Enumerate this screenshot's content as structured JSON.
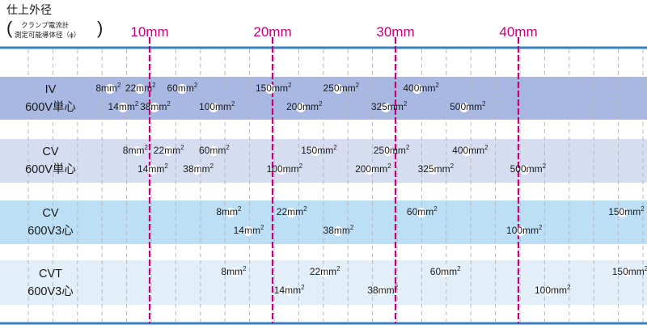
{
  "header": {
    "title": "仕上外径",
    "open_paren": "(",
    "close_paren": ")",
    "sub_line1": "クランプ電流計",
    "sub_line2": "測定可能導体径（ϕ）"
  },
  "chart_data": {
    "type": "table",
    "x_unit": "mm",
    "x_ticks": [
      {
        "value": 10,
        "label": "10mm"
      },
      {
        "value": 20,
        "label": "20mm"
      },
      {
        "value": 30,
        "label": "30mm"
      },
      {
        "value": 40,
        "label": "40mm"
      }
    ],
    "rows": [
      {
        "name_line1": "IV",
        "name_line2": "600V単心",
        "color": "#a8b8e2",
        "items": [
          {
            "label": "8mm",
            "sup": "2",
            "x": 6.8
          },
          {
            "label": "14mm",
            "sup": "2",
            "x": 7.8
          },
          {
            "label": "22mm",
            "sup": "2",
            "x": 9.2
          },
          {
            "label": "38mm",
            "sup": "2",
            "x": 10.4
          },
          {
            "label": "60mm",
            "sup": "2",
            "x": 12.6
          },
          {
            "label": "100mm",
            "sup": "2",
            "x": 15.2
          },
          {
            "label": "150mm",
            "sup": "2",
            "x": 19.8
          },
          {
            "label": "200mm",
            "sup": "2",
            "x": 22.3
          },
          {
            "label": "250mm",
            "sup": "2",
            "x": 25.3
          },
          {
            "label": "325mm",
            "sup": "2",
            "x": 29.2
          },
          {
            "label": "400mm",
            "sup": "2",
            "x": 31.8
          },
          {
            "label": "500mm",
            "sup": "2",
            "x": 35.6
          }
        ]
      },
      {
        "name_line1": "CV",
        "name_line2": "600V単心",
        "color": "#d6ddf1",
        "items": [
          {
            "label": "8mm",
            "sup": "2",
            "x": 9.0
          },
          {
            "label": "14mm",
            "sup": "2",
            "x": 10.2
          },
          {
            "label": "22mm",
            "sup": "2",
            "x": 11.5
          },
          {
            "label": "38mm",
            "sup": "2",
            "x": 13.9
          },
          {
            "label": "60mm",
            "sup": "2",
            "x": 15.2
          },
          {
            "label": "100mm",
            "sup": "2",
            "x": 20.7
          },
          {
            "label": "150mm",
            "sup": "2",
            "x": 23.5
          },
          {
            "label": "200mm",
            "sup": "2",
            "x": 27.9
          },
          {
            "label": "250mm",
            "sup": "2",
            "x": 29.4
          },
          {
            "label": "325mm",
            "sup": "2",
            "x": 33.0
          },
          {
            "label": "400mm",
            "sup": "2",
            "x": 35.8
          },
          {
            "label": "500mm",
            "sup": "2",
            "x": 40.5
          }
        ]
      },
      {
        "name_line1": "CV",
        "name_line2": "600V3心",
        "color": "#bcdff5",
        "items": [
          {
            "label": "8mm",
            "sup": "2",
            "x": 16.6
          },
          {
            "label": "14mm",
            "sup": "2",
            "x": 18.0
          },
          {
            "label": "22mm",
            "sup": "2",
            "x": 21.5
          },
          {
            "label": "38mm",
            "sup": "2",
            "x": 25.3
          },
          {
            "label": "60mm",
            "sup": "2",
            "x": 32.1
          },
          {
            "label": "100mm",
            "sup": "2",
            "x": 40.2
          },
          {
            "label": "150mm",
            "sup": "2",
            "x": 48.5
          }
        ]
      },
      {
        "name_line1": "CVT",
        "name_line2": "600V3心",
        "color": "#e2eff9",
        "items": [
          {
            "label": "8mm",
            "sup": "2",
            "x": 17.0
          },
          {
            "label": "14mm",
            "sup": "2",
            "x": 21.3
          },
          {
            "label": "22mm",
            "sup": "2",
            "x": 24.2
          },
          {
            "label": "38mm",
            "sup": "2",
            "x": 28.9
          },
          {
            "label": "60mm",
            "sup": "2",
            "x": 34.0
          },
          {
            "label": "100mm",
            "sup": "2",
            "x": 42.5
          },
          {
            "label": "150mm",
            "sup": "2",
            "x": 48.8
          }
        ]
      }
    ]
  },
  "colors": {
    "axis_line": "#3a7fc0",
    "tick_line": "#c5007a",
    "grid_dash": "#b8b8b8"
  }
}
